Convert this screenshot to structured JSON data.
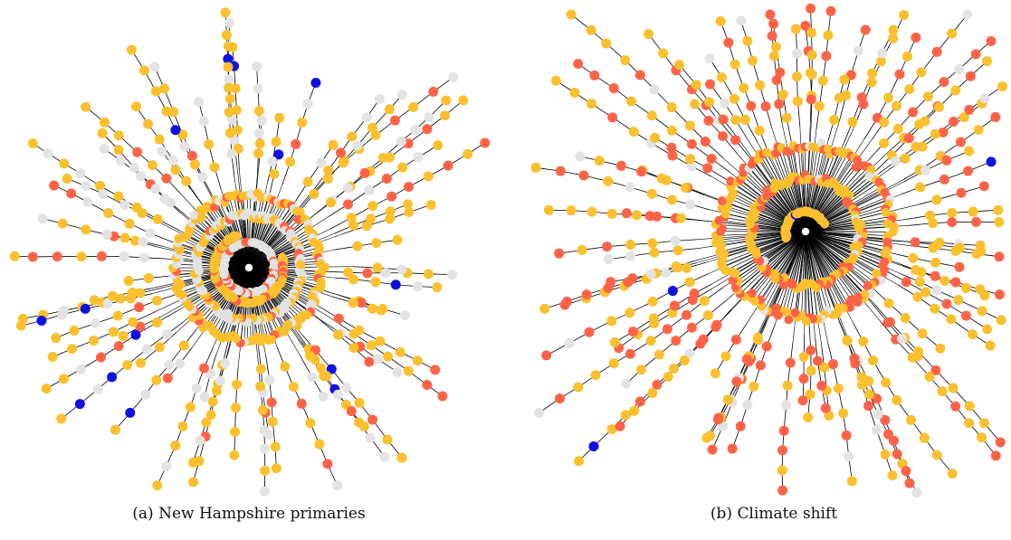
{
  "figure": {
    "panels": [
      {
        "id": "a",
        "caption": "(a) New Hampshire primaries"
      },
      {
        "id": "b",
        "caption": "(b) Climate shift"
      }
    ],
    "node_colors": {
      "yellow": "#FBC02D",
      "orange": "#FF6347",
      "gray": "#E3E3E3",
      "blue": "#1010E0",
      "root": "#FFFFFF",
      "edge": "#000000"
    }
  }
}
